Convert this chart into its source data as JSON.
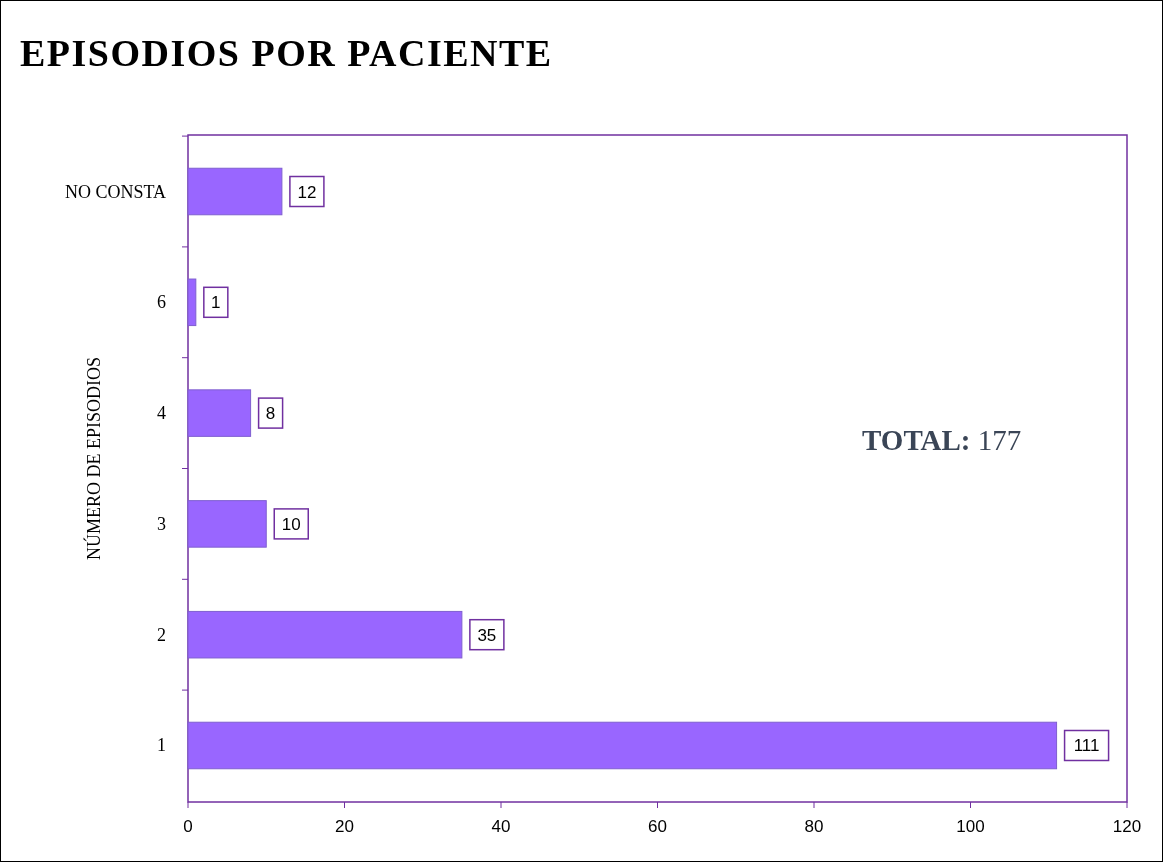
{
  "chart_data": {
    "type": "bar",
    "orientation": "horizontal",
    "title": "EPISODIOS POR PACIENTE",
    "ylabel": "NÚMERO DE EPISODIOS",
    "categories": [
      "NO CONSTA",
      "6",
      "4",
      "3",
      "2",
      "1"
    ],
    "values": [
      12,
      1,
      8,
      10,
      35,
      111
    ],
    "color": "#9966ff",
    "xlim": [
      0,
      120
    ],
    "xticks": [
      0,
      20,
      40,
      60,
      80,
      100,
      120
    ],
    "grid": false,
    "data_labels": true,
    "annotations": [
      "TOTAL: 177"
    ]
  }
}
